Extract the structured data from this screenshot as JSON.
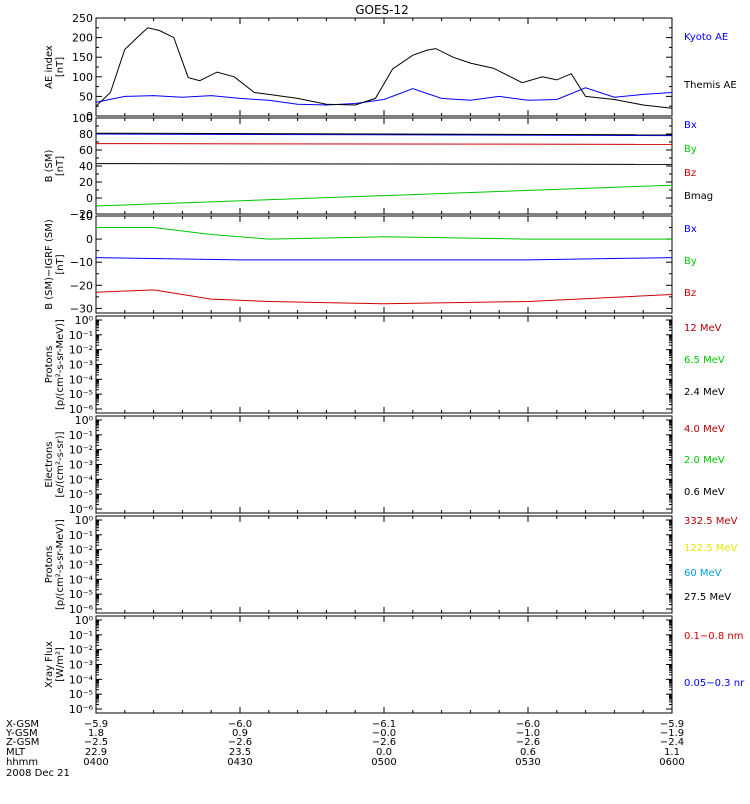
{
  "figure": {
    "title": "GOES-12",
    "date": "2008 Dec 21"
  },
  "colors": {
    "black": "#000000",
    "blue": "#0000ff",
    "green": "#00c800",
    "red": "#d00000",
    "darkred": "#b40000",
    "yellow": "#e8e800",
    "cyan": "#00a0e0"
  },
  "chart_data": [
    {
      "type": "line",
      "ylabel": [
        "AE index",
        "[nT]"
      ],
      "ylim": [
        0,
        250
      ],
      "yticks": [
        "0",
        "50",
        "100",
        "150",
        "200",
        "250"
      ],
      "yscale": "linear",
      "x": [
        "0400",
        "0430",
        "0500",
        "0530",
        "0600"
      ],
      "series": [
        {
          "name": "Kyoto AE",
          "color": "#0000ff",
          "x": [
            0,
            10,
            20,
            30,
            40,
            50,
            60,
            70,
            80,
            90,
            100,
            110,
            120,
            130,
            140,
            150,
            160,
            170,
            180,
            190,
            200
          ],
          "values": [
            35,
            50,
            52,
            48,
            52,
            45,
            40,
            30,
            28,
            32,
            42,
            70,
            45,
            40,
            50,
            40,
            42,
            72,
            48,
            55,
            60
          ]
        },
        {
          "name": "Themis AE",
          "color": "#000000",
          "x": [
            0,
            5,
            10,
            15,
            18,
            22,
            27,
            32,
            36,
            42,
            48,
            55,
            60,
            70,
            80,
            90,
            97,
            103,
            110,
            115,
            118,
            124,
            130,
            138,
            148,
            155,
            160,
            165,
            170,
            180,
            190,
            200
          ],
          "values": [
            25,
            60,
            170,
            205,
            225,
            218,
            200,
            98,
            90,
            112,
            100,
            60,
            55,
            45,
            30,
            28,
            45,
            120,
            155,
            168,
            172,
            150,
            135,
            122,
            85,
            100,
            92,
            108,
            50,
            42,
            28,
            20
          ]
        }
      ]
    },
    {
      "type": "line",
      "ylabel": [
        "B (SM)",
        "[nT]"
      ],
      "ylim": [
        -20,
        100
      ],
      "yticks": [
        "−20",
        "0",
        "20",
        "40",
        "60",
        "80",
        "100"
      ],
      "yscale": "linear",
      "x": [
        "0400",
        "0430",
        "0500",
        "0530",
        "0600"
      ],
      "series": [
        {
          "name": "Bx",
          "color": "#0000ff",
          "x": [
            0,
            200
          ],
          "values": [
            80,
            78
          ]
        },
        {
          "name": "By",
          "color": "#00c800",
          "x": [
            0,
            200
          ],
          "values": [
            -10,
            16
          ]
        },
        {
          "name": "Bz",
          "color": "#d00000",
          "x": [
            0,
            200
          ],
          "values": [
            68,
            67
          ]
        },
        {
          "name": "Bmag",
          "color": "#000000",
          "x": [
            0,
            200
          ],
          "values": [
            81,
            79
          ]
        }
      ],
      "series_black": [
        {
          "x": [
            0,
            200
          ],
          "values": [
            43,
            42
          ]
        }
      ]
    },
    {
      "type": "line",
      "ylabel": [
        "B (SM)−IGRF (SM)",
        "[nT]"
      ],
      "ylim": [
        -32,
        10
      ],
      "yticks": [
        "−30",
        "−20",
        "−10",
        "0",
        "10"
      ],
      "yscale": "linear",
      "x": [
        "0400",
        "0430",
        "0500",
        "0530",
        "0600"
      ],
      "series": [
        {
          "name": "Bx",
          "color": "#0000ff",
          "x": [
            0,
            50,
            100,
            150,
            200
          ],
          "values": [
            -8,
            -9,
            -9,
            -9,
            -8
          ]
        },
        {
          "name": "By",
          "color": "#00c800",
          "x": [
            0,
            20,
            40,
            60,
            100,
            150,
            200
          ],
          "values": [
            5,
            5,
            2,
            0,
            1,
            0,
            0
          ]
        },
        {
          "name": "Bz",
          "color": "#d00000",
          "x": [
            0,
            20,
            40,
            60,
            100,
            150,
            200
          ],
          "values": [
            -23,
            -22,
            -26,
            -27,
            -28,
            -27,
            -24
          ]
        }
      ]
    },
    {
      "type": "line",
      "ylabel": [
        "Protons",
        "[p/(cm²-s-sr-MeV)]"
      ],
      "yscale": "log",
      "yticks": [
        "10⁰",
        "10⁻¹",
        "10⁻²",
        "10⁻³",
        "10⁻⁴",
        "10⁻⁵",
        "10⁻⁶"
      ],
      "series": [
        {
          "name": "12 MeV",
          "color": "#b40000",
          "values": []
        },
        {
          "name": "6.5 MeV",
          "color": "#00c800",
          "values": []
        },
        {
          "name": "2.4 MeV",
          "color": "#000000",
          "values": []
        }
      ]
    },
    {
      "type": "line",
      "ylabel": [
        "Electrons",
        "[e/(cm²-s-sr)]"
      ],
      "yscale": "log",
      "yticks": [
        "10⁰",
        "10⁻¹",
        "10⁻²",
        "10⁻³",
        "10⁻⁴",
        "10⁻⁵",
        "10⁻⁶"
      ],
      "series": [
        {
          "name": "4.0 MeV",
          "color": "#b40000",
          "values": []
        },
        {
          "name": "2.0 MeV",
          "color": "#00c800",
          "values": []
        },
        {
          "name": "0.6 MeV",
          "color": "#000000",
          "values": []
        }
      ]
    },
    {
      "type": "line",
      "ylabel": [
        "Protons",
        "[p/(cm²-s-sr-MeV)]"
      ],
      "yscale": "log",
      "yticks": [
        "10⁰",
        "10⁻¹",
        "10⁻²",
        "10⁻³",
        "10⁻⁴",
        "10⁻⁵",
        "10⁻⁶"
      ],
      "series": [
        {
          "name": "332.5 MeV",
          "color": "#b40000",
          "values": []
        },
        {
          "name": "122.5 MeV",
          "color": "#e8e800",
          "values": []
        },
        {
          "name": "60 MeV",
          "color": "#00a0e0",
          "values": []
        },
        {
          "name": "27.5 MeV",
          "color": "#000000",
          "values": []
        }
      ]
    },
    {
      "type": "line",
      "ylabel": [
        "Xray Flux",
        "[W/m²]"
      ],
      "yscale": "log",
      "yticks": [
        "10⁰",
        "10⁻¹",
        "10⁻²",
        "10⁻³",
        "10⁻⁴",
        "10⁻⁵",
        "10⁻⁶"
      ],
      "series": [
        {
          "name": "0.1−0.8 nm",
          "color": "#d00000",
          "values": []
        },
        {
          "name": "0.05−0.3 nr",
          "color": "#0000ff",
          "values": []
        }
      ]
    }
  ],
  "orbit_table": {
    "row_labels": [
      "X-GSM",
      "Y-GSM",
      "Z-GSM",
      "MLT",
      "hhmm"
    ],
    "columns": [
      [
        "−5.9",
        "1.8",
        "−2.5",
        "22.9",
        "0400"
      ],
      [
        "−6.0",
        "0.9",
        "−2.6",
        "23.5",
        "0430"
      ],
      [
        "−6.1",
        "−0.0",
        "−2.6",
        "0.0",
        "0500"
      ],
      [
        "−6.0",
        "−1.0",
        "−2.6",
        "0.6",
        "0530"
      ],
      [
        "−5.9",
        "−1.9",
        "−2.4",
        "1.1",
        "0600"
      ]
    ]
  }
}
